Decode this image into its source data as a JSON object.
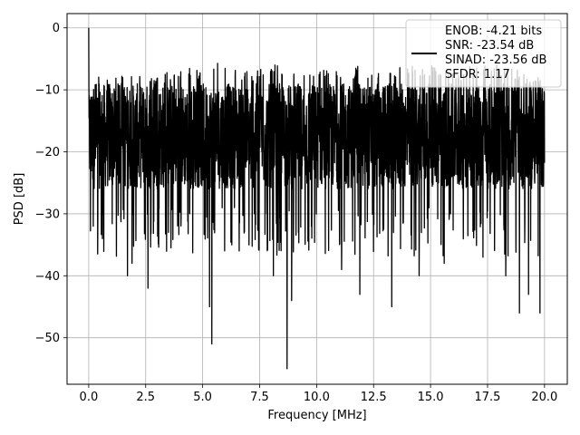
{
  "chart_data": {
    "type": "line",
    "title": "",
    "xlabel": "Frequency [MHz]",
    "ylabel": "PSD [dB]",
    "xlim": [
      -0.95,
      21.0
    ],
    "ylim": [
      -57.5,
      2.3
    ],
    "xticks": [
      0.0,
      2.5,
      5.0,
      7.5,
      10.0,
      12.5,
      15.0,
      17.5,
      20.0
    ],
    "xtick_labels": [
      "0.0",
      "2.5",
      "5.0",
      "7.5",
      "10.0",
      "12.5",
      "15.0",
      "17.5",
      "20.0"
    ],
    "yticks": [
      0,
      -10,
      -20,
      -30,
      -40,
      -50
    ],
    "ytick_labels": [
      "0",
      "−10",
      "−20",
      "−30",
      "−40",
      "−50"
    ],
    "grid": true,
    "legend": {
      "placement": "top-right",
      "entries": [
        "ENOB: -4.21 bits",
        "SNR: -23.54 dB",
        "SINAD: -23.56 dB",
        "SFDR: 1.17"
      ]
    },
    "series": [
      {
        "color": "#000000",
        "x_range": [
          0.0,
          20.0
        ],
        "typical_band": [
          -26,
          -9
        ],
        "envelope_max": [
          [
            0.0,
            0.0
          ],
          [
            0.05,
            -4
          ],
          [
            0.1,
            -9
          ],
          [
            0.5,
            -7
          ],
          [
            1.0,
            -8
          ],
          [
            2.0,
            -7
          ],
          [
            3.0,
            -8
          ],
          [
            4.0,
            -6
          ],
          [
            5.0,
            -7
          ],
          [
            6.0,
            -5
          ],
          [
            7.0,
            -7
          ],
          [
            8.0,
            -6
          ],
          [
            9.0,
            -6
          ],
          [
            10.0,
            -6
          ],
          [
            11.0,
            -7
          ],
          [
            12.0,
            -6
          ],
          [
            13.0,
            -7
          ],
          [
            14.0,
            -6
          ],
          [
            15.0,
            -6
          ],
          [
            16.0,
            -7
          ],
          [
            17.0,
            -6
          ],
          [
            18.0,
            -6
          ],
          [
            19.0,
            -7
          ],
          [
            20.0,
            -8
          ]
        ],
        "notable_dips": [
          [
            0.2,
            -32
          ],
          [
            0.6,
            -34
          ],
          [
            1.7,
            -40
          ],
          [
            1.9,
            -38
          ],
          [
            2.6,
            -42
          ],
          [
            3.5,
            -33
          ],
          [
            5.3,
            -45
          ],
          [
            5.4,
            -51
          ],
          [
            6.6,
            -36
          ],
          [
            8.1,
            -40
          ],
          [
            8.7,
            -55
          ],
          [
            8.9,
            -44
          ],
          [
            11.1,
            -39
          ],
          [
            11.9,
            -43
          ],
          [
            13.3,
            -45
          ],
          [
            14.5,
            -40
          ],
          [
            15.6,
            -38
          ],
          [
            17.3,
            -37
          ],
          [
            18.3,
            -40
          ],
          [
            18.9,
            -46
          ],
          [
            19.3,
            -43
          ],
          [
            19.8,
            -46
          ]
        ]
      }
    ]
  }
}
